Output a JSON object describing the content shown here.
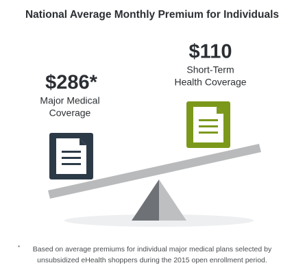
{
  "title": "National Average Monthly Premium for Individuals",
  "left": {
    "price": "$286*",
    "label": [
      "Major Medical",
      "Coverage"
    ]
  },
  "right": {
    "price": "$110",
    "label": [
      "Short-Term",
      "Health Coverage"
    ]
  },
  "footnote": {
    "marker": "*",
    "lines": [
      "Based on average premiums for individual major medical plans selected by",
      "unsubsidized eHealth shoppers during the 2015 open enrollment period."
    ]
  }
}
